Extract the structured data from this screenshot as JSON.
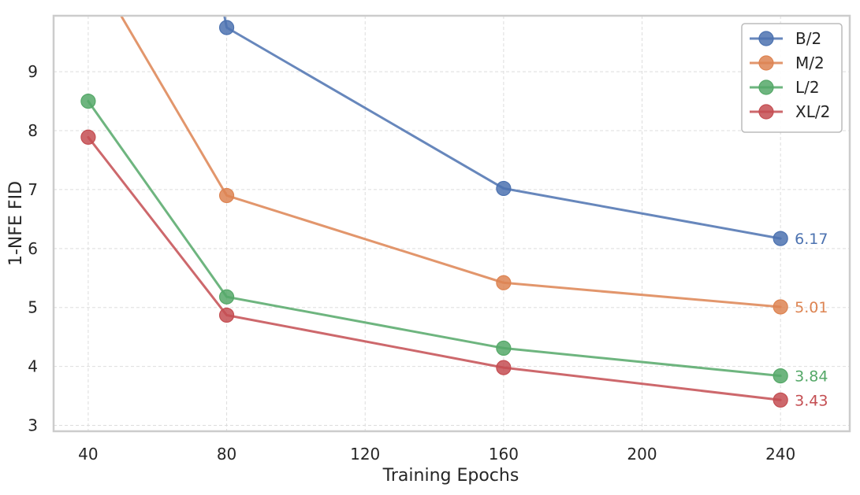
{
  "chart_data": {
    "type": "line",
    "xlabel": "Training Epochs",
    "ylabel": "1-NFE FID",
    "xlim": [
      30,
      260
    ],
    "ylim": [
      2.9,
      9.95
    ],
    "xticks": [
      40,
      80,
      120,
      160,
      200,
      240
    ],
    "yticks": [
      3,
      4,
      5,
      6,
      7,
      8,
      9
    ],
    "grid": true,
    "legend_position": "top-right",
    "series": [
      {
        "name": "B/2",
        "color": "#4c72b0",
        "x": [
          80,
          160,
          240
        ],
        "y": [
          9.75,
          7.02,
          6.17
        ],
        "line_in_from": [
          79,
          10.05
        ],
        "end_label": "6.17"
      },
      {
        "name": "M/2",
        "color": "#dd8452",
        "x": [
          80,
          160,
          240
        ],
        "y": [
          6.9,
          5.42,
          5.01
        ],
        "line_in_from": [
          48.5,
          10.05
        ],
        "end_label": "5.01"
      },
      {
        "name": "L/2",
        "color": "#55a868",
        "x": [
          40,
          80,
          160,
          240
        ],
        "y": [
          8.5,
          5.18,
          4.31,
          3.84
        ],
        "end_label": "3.84"
      },
      {
        "name": "XL/2",
        "color": "#c44e52",
        "x": [
          40,
          80,
          160,
          240
        ],
        "y": [
          7.89,
          4.87,
          3.98,
          3.43
        ],
        "end_label": "3.43"
      }
    ]
  }
}
